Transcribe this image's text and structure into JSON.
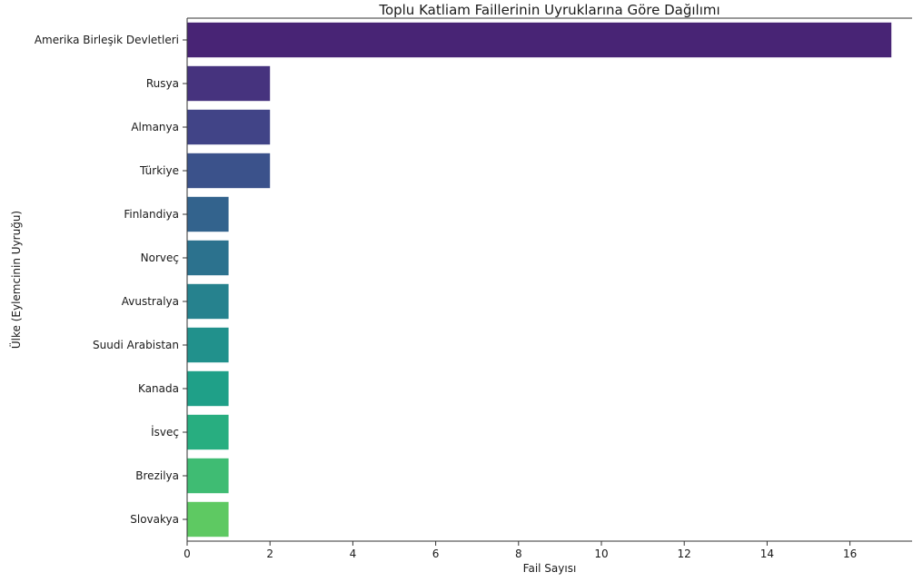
{
  "chart_data": {
    "type": "bar",
    "orientation": "horizontal",
    "title": "Toplu Katliam Faillerinin Uyruklarına Göre Dağılımı",
    "xlabel": "Fail Sayısı",
    "ylabel": "Ülke (Eylemcinin Uyruğu)",
    "categories": [
      "Amerika Birleşik Devletleri",
      "Rusya",
      "Almanya",
      "Türkiye",
      "Finlandiya",
      "Norveç",
      "Avustralya",
      "Suudi Arabistan",
      "Kanada",
      "İsveç",
      "Brezilya",
      "Slovakya"
    ],
    "values": [
      17,
      2,
      2,
      2,
      1,
      1,
      1,
      1,
      1,
      1,
      1,
      1
    ],
    "colors": [
      "#482475",
      "#46337e",
      "#414487",
      "#3b528b",
      "#33638d",
      "#2c728e",
      "#26828e",
      "#21918c",
      "#1fa088",
      "#28ae80",
      "#3fbc73",
      "#5ec962"
    ],
    "xlim": [
      0,
      17.5
    ],
    "xticks": [
      0,
      2,
      4,
      6,
      8,
      10,
      12,
      14,
      16
    ],
    "grid": false
  }
}
